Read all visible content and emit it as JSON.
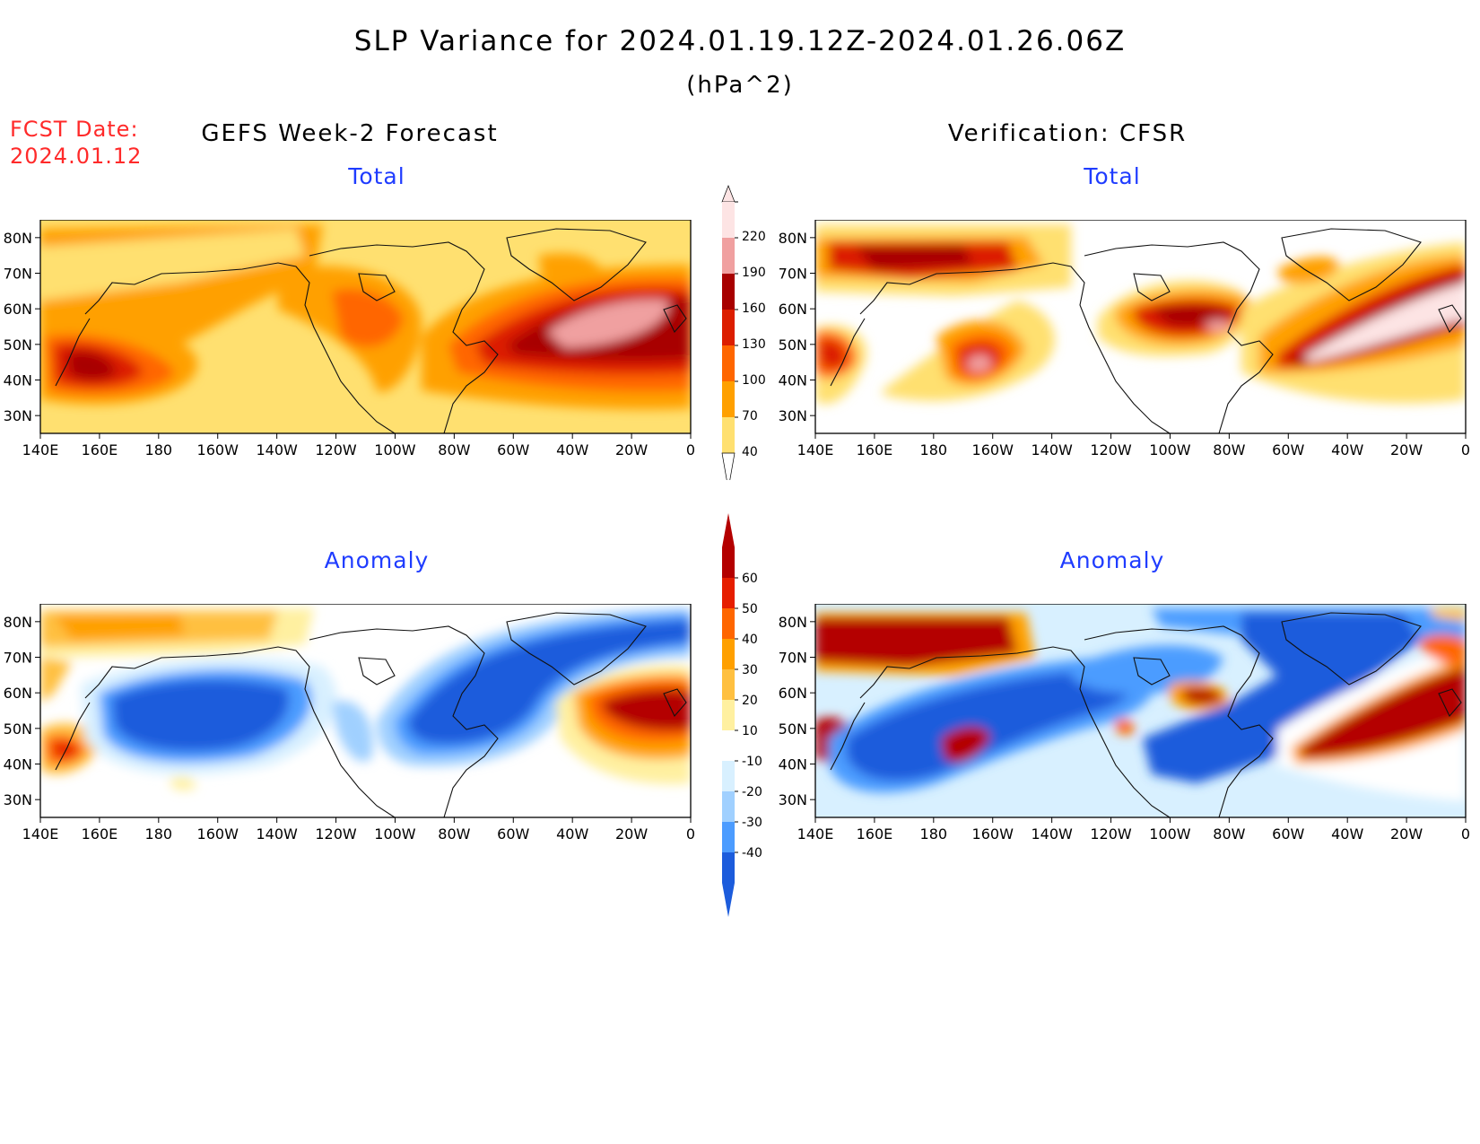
{
  "header": {
    "title": "SLP Variance for 2024.01.19.12Z-2024.01.26.06Z",
    "units": "(hPa^2)",
    "fcst_label": "FCST Date:",
    "fcst_date": "2024.01.12"
  },
  "columns": {
    "left": "GEFS Week-2 Forecast",
    "right": "Verification: CFSR"
  },
  "panels": {
    "gefs_total": "Total",
    "cfsr_total": "Total",
    "gefs_anomaly": "Anomaly",
    "cfsr_anomaly": "Anomaly"
  },
  "axes": {
    "lat_ticks": [
      "80N",
      "70N",
      "60N",
      "50N",
      "40N",
      "30N"
    ],
    "lon_ticks": [
      "140E",
      "160E",
      "180",
      "160W",
      "140W",
      "120W",
      "100W",
      "80W",
      "60W",
      "40W",
      "20W",
      "0"
    ]
  },
  "colorbar_total": {
    "labels": [
      "220",
      "190",
      "160",
      "130",
      "100",
      "70",
      "40"
    ],
    "colors": [
      "#fde4e4",
      "#f0a0a0",
      "#a80000",
      "#dc1e00",
      "#ff6600",
      "#ffa000",
      "#ffe070"
    ]
  },
  "colorbar_anomaly": {
    "labels": [
      "60",
      "50",
      "40",
      "30",
      "20",
      "10",
      "-10",
      "-20",
      "-30",
      "-40"
    ],
    "colors": [
      "#b40000",
      "#e61e00",
      "#ff6600",
      "#ffa000",
      "#ffc040",
      "#fff0a0",
      "#ffffff",
      "#d8f0ff",
      "#a0d0ff",
      "#4c9cff",
      "#1c5cdc"
    ]
  }
}
